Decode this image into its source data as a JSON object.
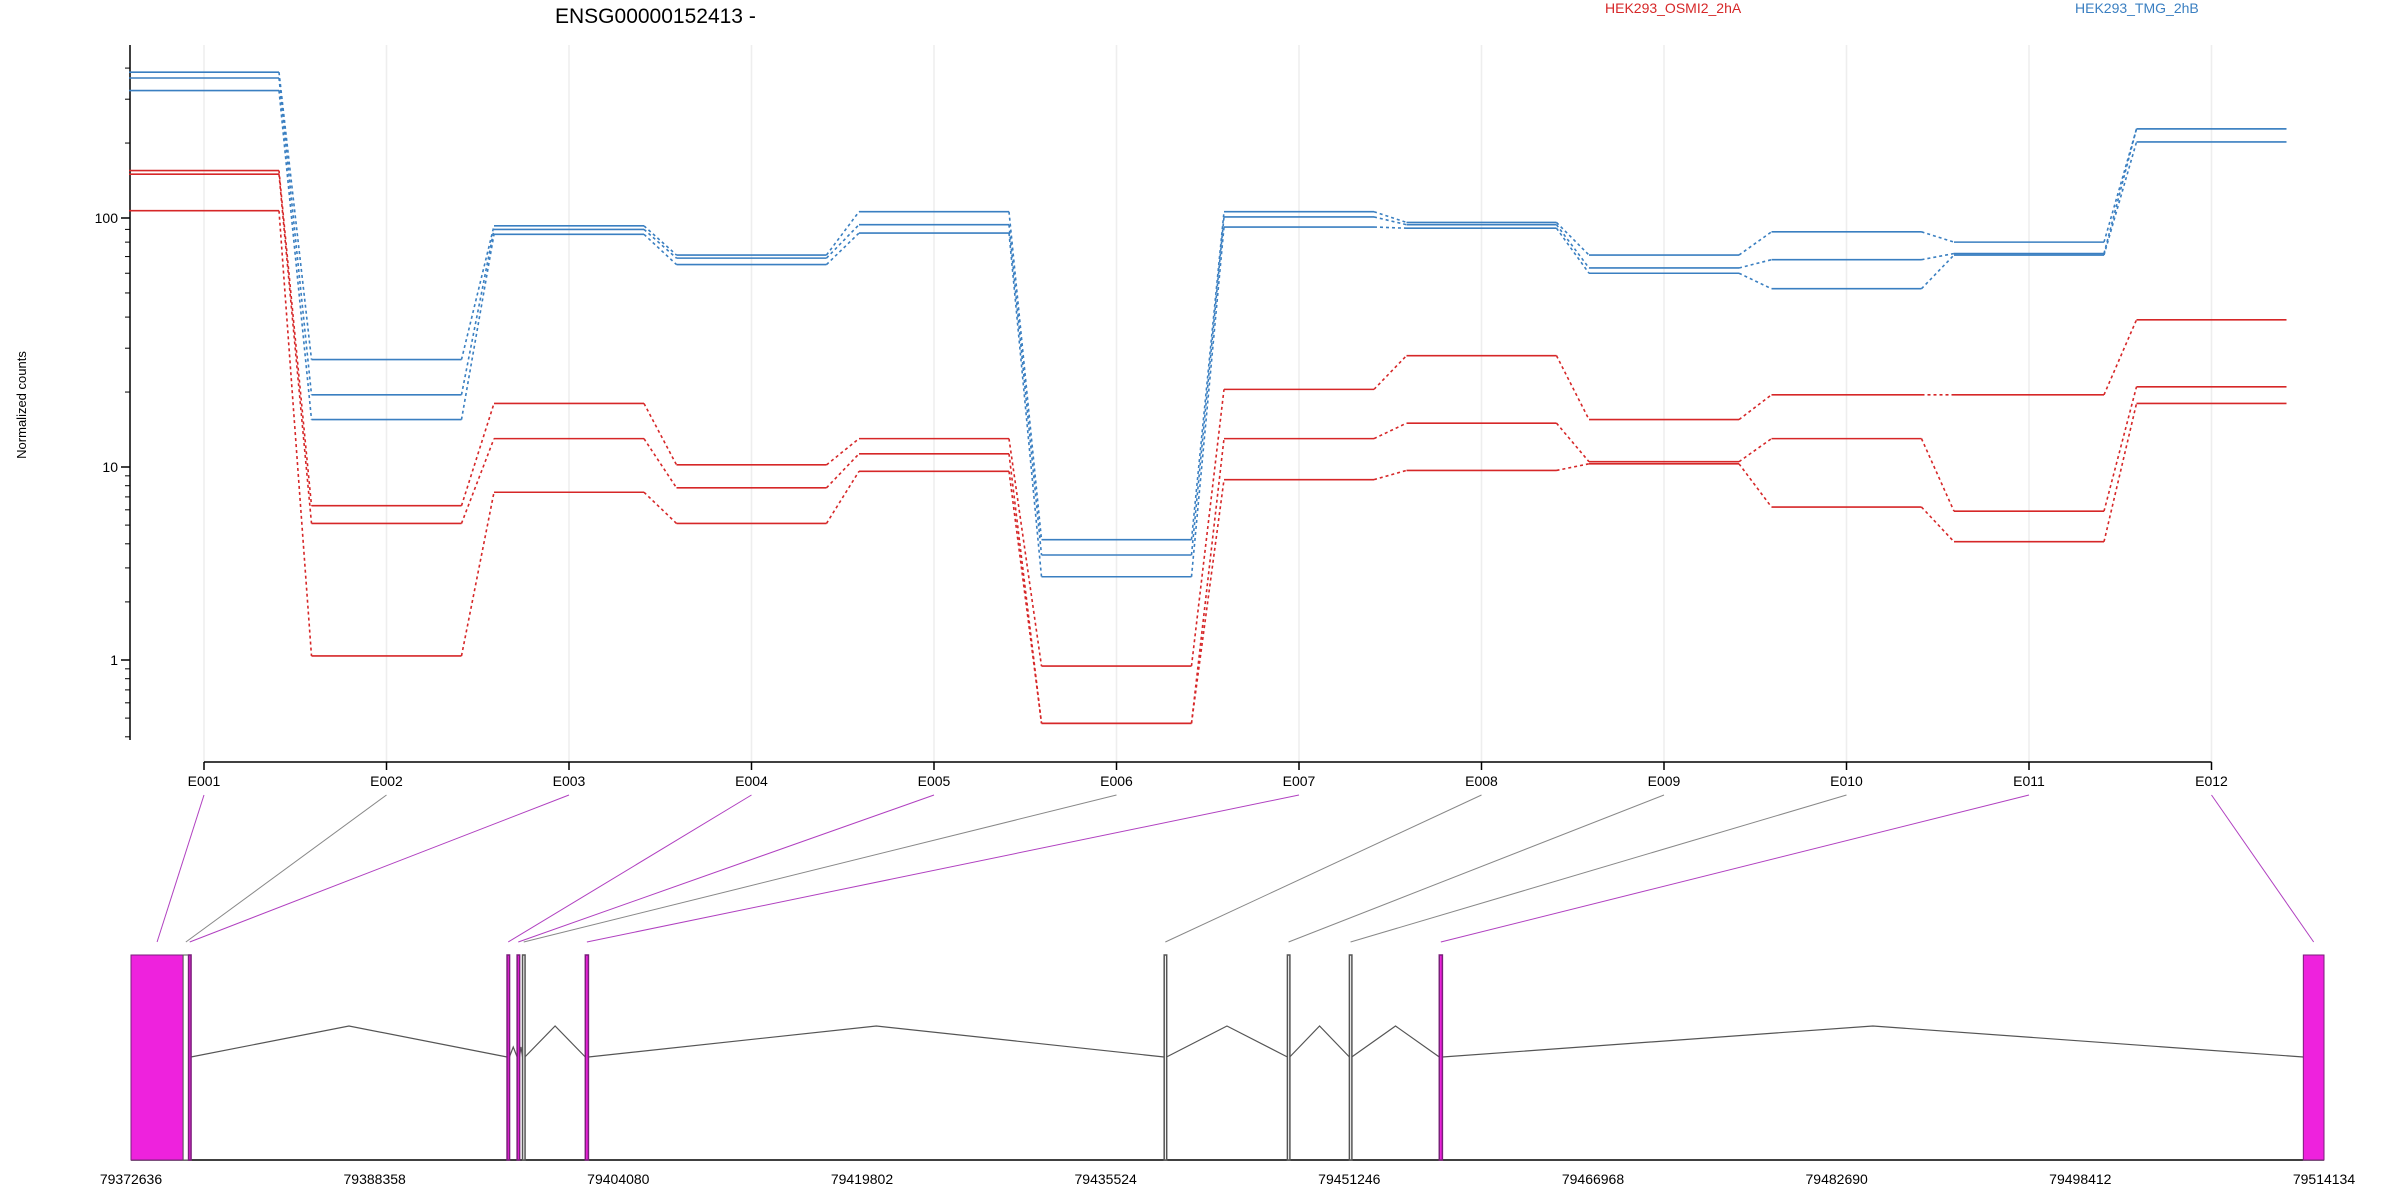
{
  "title": "ENSG00000152413 -",
  "ylabel": "Normalized counts",
  "legend": [
    {
      "name": "HEK293_OSMI2_2hA",
      "color": "#d62728"
    },
    {
      "name": "HEK293_TMG_2hB",
      "color": "#3a7fc1"
    }
  ],
  "chart_data": {
    "type": "line",
    "scale": "log",
    "xlabel": "",
    "ylabel": "Normalized counts",
    "categories": [
      "E001",
      "E002",
      "E003",
      "E004",
      "E005",
      "E006",
      "E007",
      "E008",
      "E009",
      "E010",
      "E011",
      "E012"
    ],
    "y_ticks": [
      1,
      10,
      100
    ],
    "ylim": [
      0.4,
      600
    ],
    "grid": "vertical",
    "legend_position": "top",
    "series": [
      {
        "group": "HEK293_OSMI2_2hA",
        "color": "#d62728",
        "values": [
          155,
          6.3,
          18,
          10.2,
          13,
          0.93,
          20.5,
          28,
          15.5,
          19.5,
          19.5,
          39
        ]
      },
      {
        "group": "HEK293_OSMI2_2hA",
        "color": "#d62728",
        "values": [
          150,
          5.1,
          13,
          7.8,
          11.3,
          0.47,
          13,
          15,
          10.5,
          13,
          5.9,
          21
        ]
      },
      {
        "group": "HEK293_OSMI2_2hA",
        "color": "#d62728",
        "values": [
          107,
          1.05,
          7.4,
          5.1,
          9.5,
          0.47,
          8.6,
          9.6,
          10.3,
          6.2,
          4.1,
          18
        ]
      },
      {
        "group": "HEK293_TMG_2hB",
        "color": "#3a7fc1",
        "values": [
          385,
          27,
          93,
          71,
          106,
          4.2,
          106,
          96,
          71,
          88,
          80,
          228
        ]
      },
      {
        "group": "HEK293_TMG_2hB",
        "color": "#3a7fc1",
        "values": [
          365,
          19.5,
          90,
          69,
          94,
          3.5,
          101,
          94,
          63,
          68,
          72,
          228
        ]
      },
      {
        "group": "HEK293_TMG_2hB",
        "color": "#3a7fc1",
        "values": [
          325,
          15.5,
          86,
          65,
          87,
          2.7,
          92,
          91,
          60,
          52,
          71,
          202
        ]
      }
    ]
  },
  "gene_model": {
    "range": [
      79372636,
      79514134
    ],
    "ticks": [
      79372636,
      79388358,
      79404080,
      79419802,
      79435524,
      79451246,
      79466968,
      79482690,
      79498412,
      79514134
    ],
    "exons": [
      {
        "id": "E001",
        "start": 79372636,
        "end": 79376000,
        "highlight": true
      },
      {
        "id": "E002",
        "start": 79376000,
        "end": 79376350,
        "highlight": false
      },
      {
        "id": "E003",
        "start": 79376350,
        "end": 79376500,
        "highlight": true
      },
      {
        "id": "E004",
        "start": 79396900,
        "end": 79397050,
        "highlight": true
      },
      {
        "id": "E005",
        "start": 79397550,
        "end": 79397700,
        "highlight": true
      },
      {
        "id": "E006",
        "start": 79397900,
        "end": 79398050,
        "highlight": false
      },
      {
        "id": "E007",
        "start": 79401950,
        "end": 79402150,
        "highlight": true
      },
      {
        "id": "E008",
        "start": 79439300,
        "end": 79439450,
        "highlight": false
      },
      {
        "id": "E009",
        "start": 79447250,
        "end": 79447400,
        "highlight": false
      },
      {
        "id": "E010",
        "start": 79451250,
        "end": 79451400,
        "highlight": false
      },
      {
        "id": "E011",
        "start": 79457050,
        "end": 79457250,
        "highlight": true
      },
      {
        "id": "E012",
        "start": 79512800,
        "end": 79514134,
        "highlight": true
      }
    ],
    "colors": {
      "highlight": "#ee22dd",
      "highlight_line": "#b040c0",
      "normal_line": "#888888",
      "intron": "#555555"
    }
  }
}
